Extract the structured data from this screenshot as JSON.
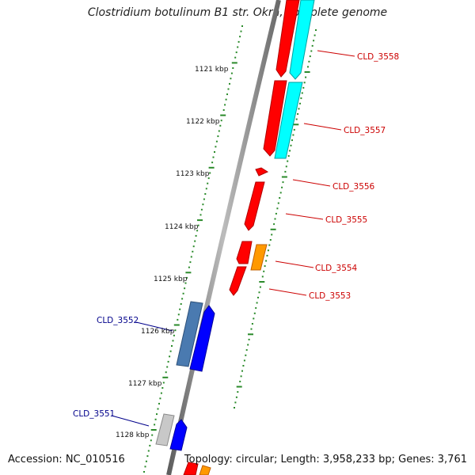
{
  "title": "Clostridium botulinum B1 str. Okra, complete genome",
  "accession": "Accession: NC_010516",
  "topology": "Topology: circular; Length: 3,958,233 bp; Genes: 3,761",
  "colors": {
    "backbone": "#808080",
    "tick": "#2a8a2a",
    "label_red": "#cc0000",
    "label_blue": "#00008b",
    "gene_red": "#ff0000",
    "gene_cyan": "#00ffff",
    "gene_orange": "#ff9900",
    "gene_blue": "#0000ff",
    "gene_steel": "#4a7ab0",
    "gene_grey": "#c8c8c8"
  },
  "kbp_labels": [
    "1121 kbp",
    "1122 kbp",
    "1123 kbp",
    "1124 kbp",
    "1125 kbp",
    "1126 kbp",
    "1127 kbp",
    "1128 kbp"
  ],
  "gene_labels": {
    "right": [
      "CLD_3558",
      "CLD_3557",
      "CLD_3556",
      "CLD_3555",
      "CLD_3554",
      "CLD_3553"
    ],
    "left": [
      "CLD_3552",
      "CLD_3551"
    ]
  }
}
